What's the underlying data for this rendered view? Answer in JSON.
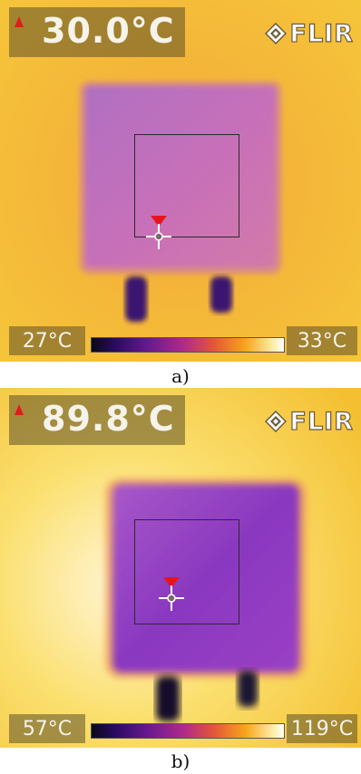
{
  "panels": [
    {
      "temperature": "30.0°C",
      "scale_min": "27°C",
      "scale_max": "33°C",
      "logo": "FLIR",
      "caption": "a)"
    },
    {
      "temperature": "89.8°C",
      "scale_min": "57°C",
      "scale_max": "119°C",
      "logo": "FLIR",
      "caption": "b)"
    }
  ],
  "icons": {
    "alarm": "triangle-up-icon",
    "logo": "flir-diamond-icon",
    "spot": "crosshair-icon",
    "spot_marker": "triangle-down-icon"
  },
  "colors": {
    "background_warm": "#f2b12a",
    "object_cool": "#9a4fb8",
    "lead_dark": "#1a0c40",
    "marker": "#e8141c"
  }
}
